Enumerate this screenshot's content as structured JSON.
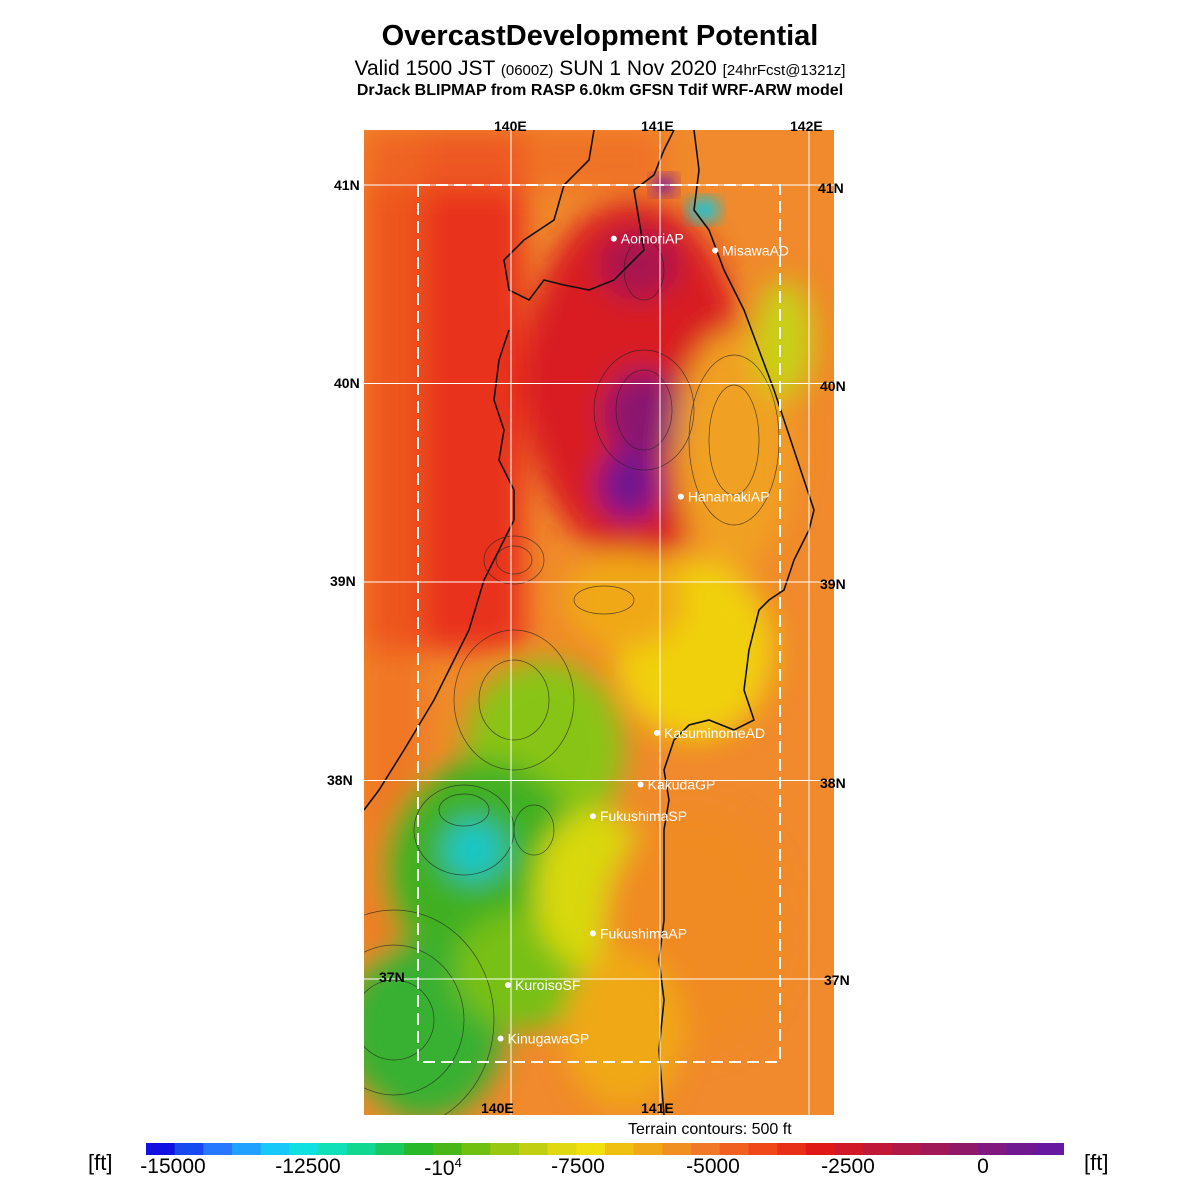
{
  "header": {
    "title": "OvercastDevelopment Potential",
    "valid_main": "Valid 1500 JST",
    "valid_utc": "(0600Z)",
    "valid_date": "SUN 1 Nov 2020",
    "forecast": "[24hrFcst@1321z]",
    "model": "DrJack BLIPMAP from RASP 6.0km GFSN Tdif WRF-ARW model"
  },
  "map": {
    "lon_labels_top": [
      "140E",
      "141E",
      "142E"
    ],
    "lon_labels_bottom": [
      "140E",
      "141E"
    ],
    "lat_labels_left": [
      "41N",
      "40N",
      "39N",
      "38N",
      "37N"
    ],
    "lat_labels_right": [
      "41N",
      "40N",
      "39N",
      "38N",
      "37N"
    ],
    "stations": [
      {
        "name": "AomoriAP",
        "lat": 40.73,
        "lon": 140.69
      },
      {
        "name": "MisawaAD",
        "lat": 40.67,
        "lon": 141.37
      },
      {
        "name": "HanamakiAP",
        "lat": 39.43,
        "lon": 141.14
      },
      {
        "name": "KasuminomeAD",
        "lat": 38.24,
        "lon": 140.98
      },
      {
        "name": "KakudaGP",
        "lat": 37.98,
        "lon": 140.87
      },
      {
        "name": "FukushimaSP",
        "lat": 37.82,
        "lon": 140.55
      },
      {
        "name": "FukushimaAP",
        "lat": 37.23,
        "lon": 140.55
      },
      {
        "name": "KuroisoSF",
        "lat": 36.97,
        "lon": 139.98
      },
      {
        "name": "KinugawaGP",
        "lat": 36.7,
        "lon": 139.93
      }
    ],
    "colors": {
      "water": "#f08a2c",
      "coast": "#111111",
      "grid": "#ffffff",
      "station": "#ffffff"
    }
  },
  "terrain_note": "Terrain contours: 500 ft",
  "colorbar": {
    "unit_left": "[ft]",
    "unit_right": "[ft]",
    "ticks": [
      {
        "label": "-15000",
        "value": -15000
      },
      {
        "label": "-12500",
        "value": -12500
      },
      {
        "label": "-10",
        "sup": "4",
        "value": -10000
      },
      {
        "label": "-7500",
        "value": -7500
      },
      {
        "label": "-5000",
        "value": -5000
      },
      {
        "label": "-2500",
        "value": -2500
      },
      {
        "label": "0",
        "value": 0
      }
    ],
    "range": [
      -15500,
      1500
    ],
    "colors": [
      "#1010e0",
      "#1848f0",
      "#2878ff",
      "#20a0ff",
      "#18c8f8",
      "#10e0e0",
      "#10e0b8",
      "#10d890",
      "#18c860",
      "#28b828",
      "#48b818",
      "#70c010",
      "#98c810",
      "#c0d010",
      "#e0d810",
      "#f0e010",
      "#f0c010",
      "#f0a818",
      "#f09020",
      "#f07828",
      "#f06020",
      "#f04818",
      "#e83018",
      "#e01818",
      "#d01828",
      "#c01838",
      "#b01848",
      "#a01858",
      "#901868",
      "#801880",
      "#701890",
      "#6818a0"
    ]
  }
}
